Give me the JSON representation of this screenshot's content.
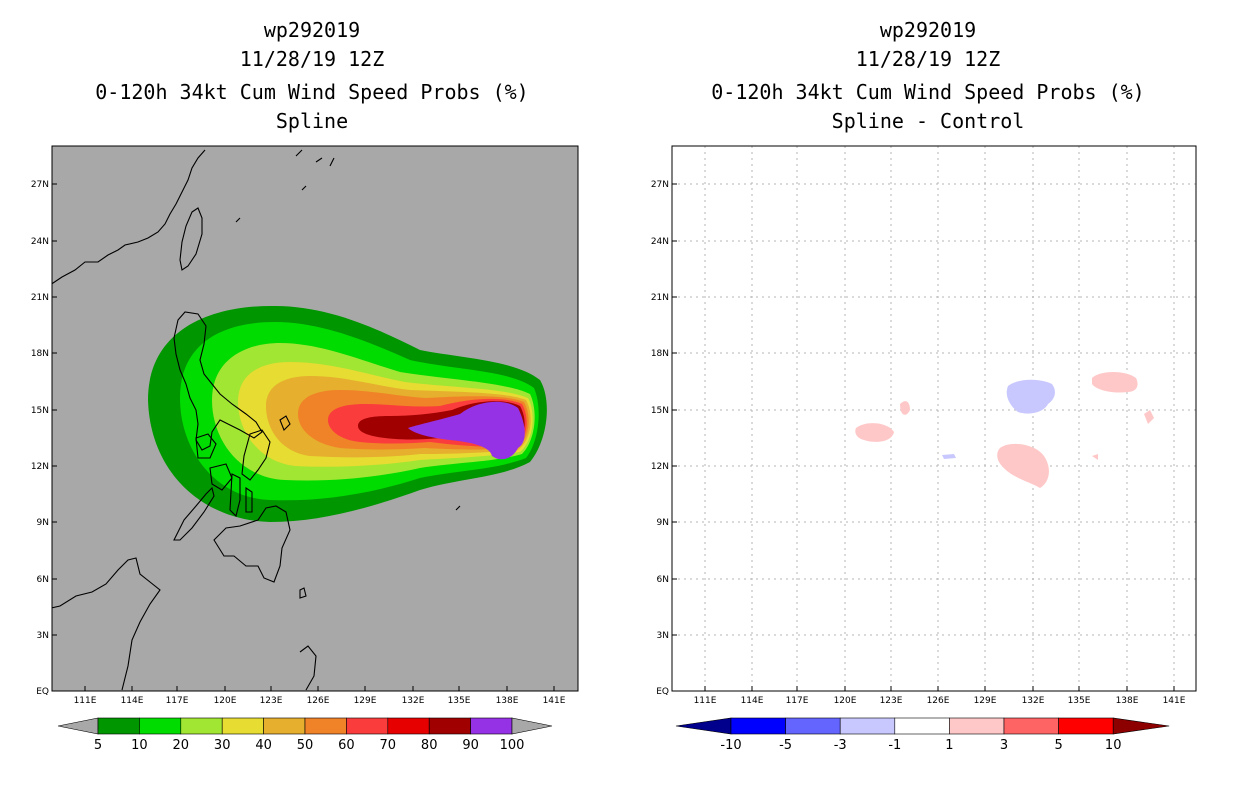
{
  "panels": [
    {
      "storm_id": "wp292019",
      "datetime": "11/28/19 12Z",
      "product": "0-120h 34kt Cum Wind Speed Probs (%)",
      "subtitle": "Spline",
      "background": "#a8a8a8",
      "colorbar": {
        "labels": [
          "5",
          "10",
          "20",
          "30",
          "40",
          "50",
          "60",
          "70",
          "80",
          "90",
          "100"
        ],
        "colors": [
          "#009600",
          "#00dc00",
          "#a0e632",
          "#e6dc32",
          "#e6af2d",
          "#f08228",
          "#fa3c3c",
          "#e60000",
          "#a00000",
          "#9632e6"
        ]
      }
    },
    {
      "storm_id": "wp292019",
      "datetime": "11/28/19 12Z",
      "product": "0-120h 34kt Cum Wind Speed Probs (%)",
      "subtitle": "Spline - Control",
      "background": "#ffffff",
      "colorbar": {
        "labels": [
          "-10",
          "-5",
          "-3",
          "-1",
          "1",
          "3",
          "5",
          "10"
        ],
        "colors": [
          "#00008c",
          "#0000ff",
          "#6464ff",
          "#c8c8ff",
          "#ffffff",
          "#ffc8c8",
          "#ff6464",
          "#ff0000",
          "#8c0000"
        ]
      }
    }
  ],
  "map": {
    "lon_ticks": [
      "111E",
      "114E",
      "117E",
      "120E",
      "123E",
      "126E",
      "129E",
      "132E",
      "135E",
      "138E",
      "141E"
    ],
    "lat_ticks": [
      "EQ",
      "3N",
      "6N",
      "9N",
      "12N",
      "15N",
      "18N",
      "21N",
      "24N",
      "27N"
    ]
  }
}
